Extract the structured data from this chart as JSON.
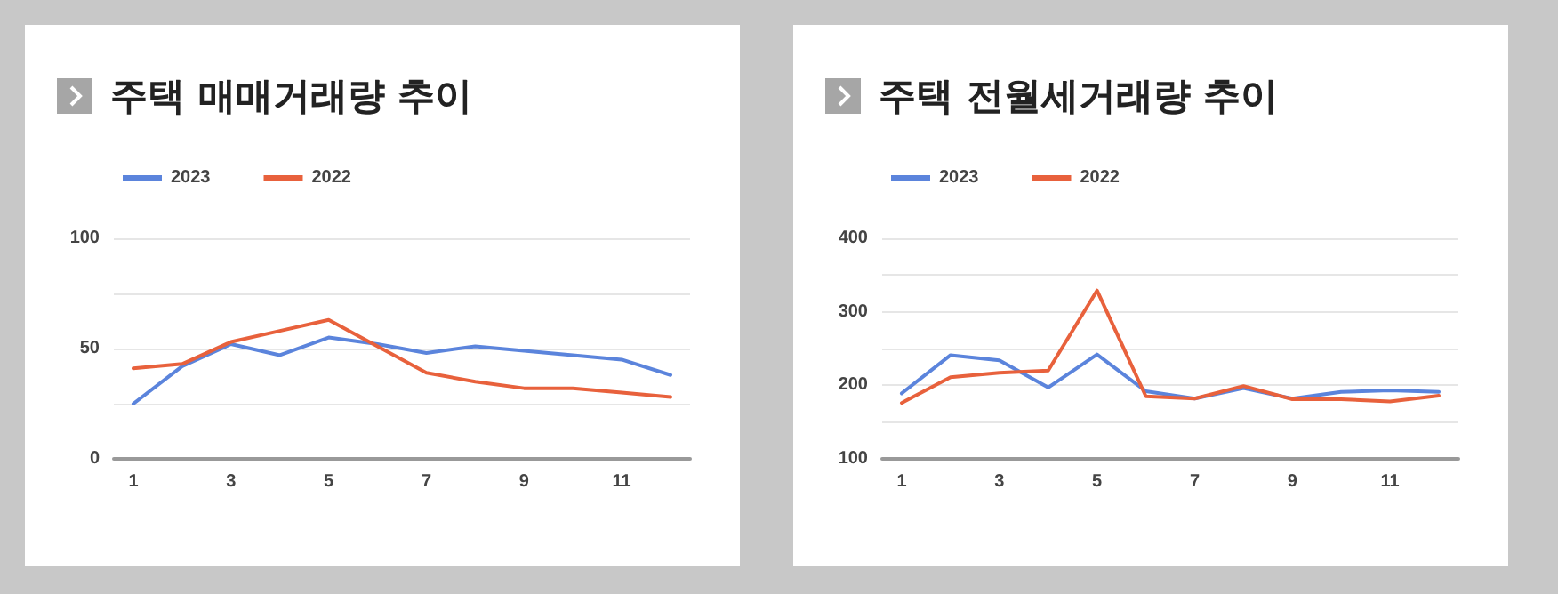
{
  "chart_data": [
    {
      "type": "line",
      "title": "주택 매매거래량 추이",
      "x": [
        1,
        2,
        3,
        4,
        5,
        6,
        7,
        8,
        9,
        10,
        11,
        12
      ],
      "xlim": [
        0.6,
        12.4
      ],
      "xticks": [
        1,
        3,
        5,
        7,
        9,
        11
      ],
      "ylim": [
        0,
        100
      ],
      "yticks": [
        0,
        {
          "value": 25,
          "label": null
        },
        50,
        {
          "value": 75,
          "label": null
        },
        100
      ],
      "grid": "y",
      "legend": "top left",
      "marker": "none",
      "line_style": "solid",
      "series": [
        {
          "name": "2023",
          "color": "#5b84dc",
          "values": [
            25,
            42,
            52,
            47,
            55,
            52,
            48,
            51,
            49,
            47,
            45,
            38
          ]
        },
        {
          "name": "2022",
          "color": "#e8613c",
          "values": [
            41,
            43,
            53,
            58,
            63,
            51,
            39,
            35,
            32,
            32,
            30,
            28
          ]
        }
      ]
    },
    {
      "type": "line",
      "title": "주택 전월세거래량 추이",
      "x": [
        1,
        2,
        3,
        4,
        5,
        6,
        7,
        8,
        9,
        10,
        11,
        12
      ],
      "xlim": [
        0.6,
        12.4
      ],
      "xticks": [
        1,
        3,
        5,
        7,
        9,
        11
      ],
      "ylim": [
        100,
        400
      ],
      "yticks": [
        100,
        {
          "value": 150,
          "label": null
        },
        200,
        {
          "value": 250,
          "label": null
        },
        300,
        {
          "value": 350,
          "label": null
        },
        400
      ],
      "grid": "y",
      "legend": "top left",
      "marker": "none",
      "line_style": "solid",
      "series": [
        {
          "name": "2023",
          "color": "#5b84dc",
          "values": [
            189,
            241,
            234,
            197,
            242,
            192,
            182,
            196,
            182,
            191,
            193,
            191
          ]
        },
        {
          "name": "2022",
          "color": "#e8613c",
          "values": [
            176,
            211,
            217,
            220,
            329,
            185,
            182,
            199,
            181,
            181,
            178,
            186
          ]
        }
      ]
    }
  ]
}
